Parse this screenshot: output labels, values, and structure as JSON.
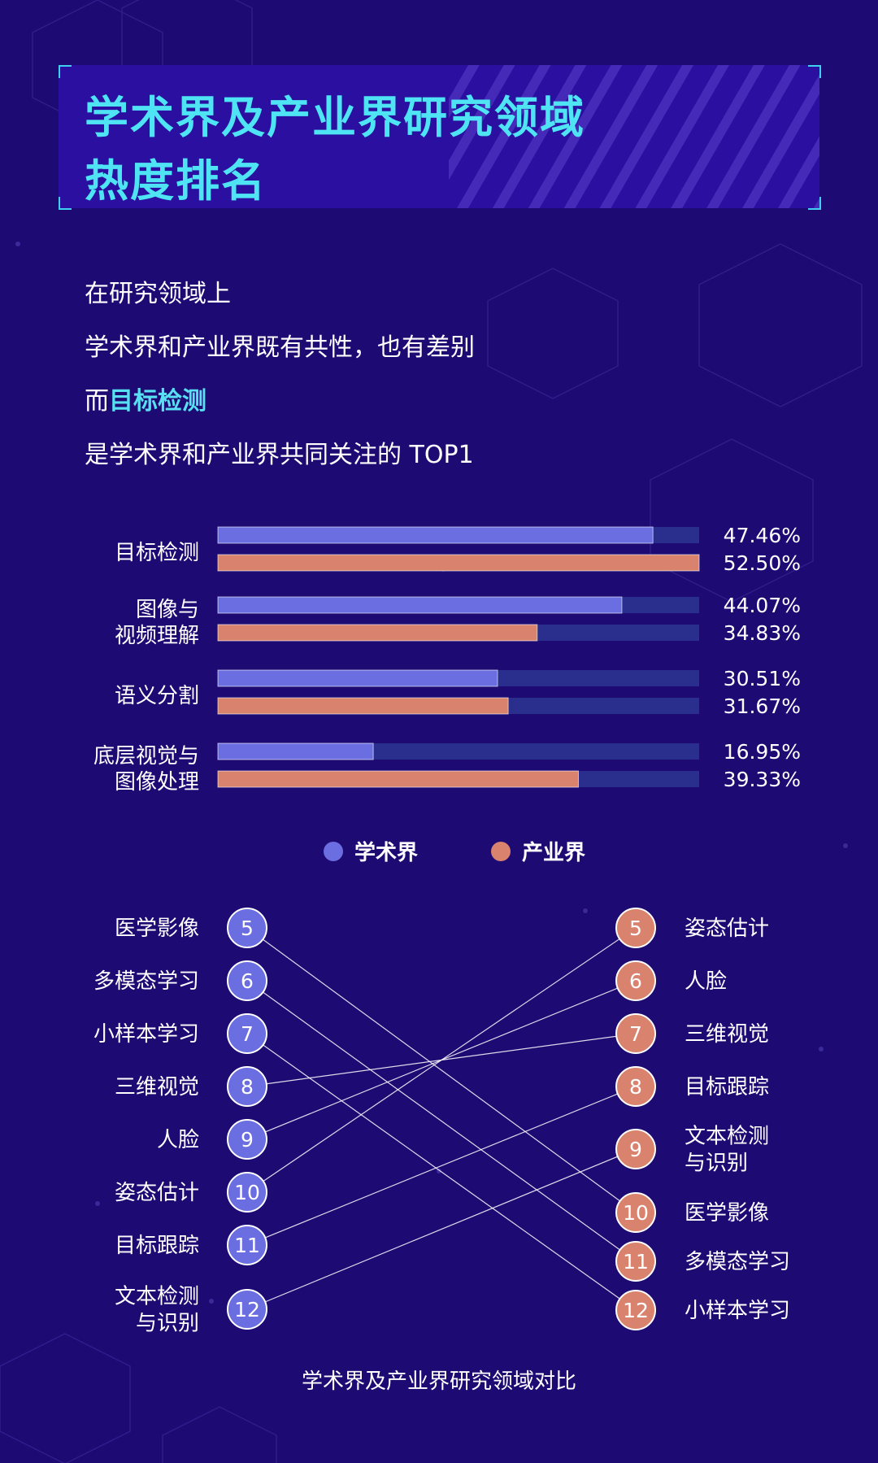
{
  "title": {
    "line1": "学术界及产业界研究领域",
    "line2": "热度排名"
  },
  "intro": {
    "line1": "在研究领域上",
    "line2": "学术界和产业界既有共性，也有差别",
    "line3_prefix": "而",
    "line3_highlight": "目标检测",
    "line4": "是学术界和产业界共同关注的 TOP1"
  },
  "colors": {
    "academic": "#6b6ee0",
    "industry": "#d9826e",
    "track": "#2a2e8c",
    "highlight": "#58dff2"
  },
  "chart_data": [
    {
      "type": "bar",
      "orientation": "horizontal",
      "categories": [
        [
          "目标检测"
        ],
        [
          "图像与",
          "视频理解"
        ],
        [
          "语义分割"
        ],
        [
          "底层视觉与",
          "图像处理"
        ]
      ],
      "series": [
        {
          "name": "学术界",
          "values": [
            47.46,
            44.07,
            30.51,
            16.95
          ],
          "labels": [
            "47.46%",
            "44.07%",
            "30.51%",
            "16.95%"
          ]
        },
        {
          "name": "产业界",
          "values": [
            52.5,
            34.83,
            31.67,
            39.33
          ],
          "labels": [
            "52.50%",
            "34.83%",
            "31.67%",
            "39.33%"
          ]
        }
      ],
      "xlim": [
        0,
        52.5
      ],
      "legend": "bottom-center"
    },
    {
      "type": "slope",
      "left_series": "学术界",
      "right_series": "产业界",
      "left": [
        {
          "rank": 5,
          "label": [
            "医学影像"
          ]
        },
        {
          "rank": 6,
          "label": [
            "多模态学习"
          ]
        },
        {
          "rank": 7,
          "label": [
            "小样本学习"
          ]
        },
        {
          "rank": 8,
          "label": [
            "三维视觉"
          ]
        },
        {
          "rank": 9,
          "label": [
            "人脸"
          ]
        },
        {
          "rank": 10,
          "label": [
            "姿态估计"
          ]
        },
        {
          "rank": 11,
          "label": [
            "目标跟踪"
          ]
        },
        {
          "rank": 12,
          "label": [
            "文本检测",
            "与识别"
          ]
        }
      ],
      "right": [
        {
          "rank": 5,
          "label": [
            "姿态估计"
          ]
        },
        {
          "rank": 6,
          "label": [
            "人脸"
          ]
        },
        {
          "rank": 7,
          "label": [
            "三维视觉"
          ]
        },
        {
          "rank": 8,
          "label": [
            "目标跟踪"
          ]
        },
        {
          "rank": 9,
          "label": [
            "文本检测",
            "与识别"
          ]
        },
        {
          "rank": 10,
          "label": [
            "医学影像"
          ]
        },
        {
          "rank": 11,
          "label": [
            "多模态学习"
          ]
        },
        {
          "rank": 12,
          "label": [
            "小样本学习"
          ]
        }
      ],
      "links": [
        [
          5,
          10
        ],
        [
          6,
          11
        ],
        [
          7,
          12
        ],
        [
          8,
          7
        ],
        [
          9,
          6
        ],
        [
          10,
          5
        ],
        [
          11,
          8
        ],
        [
          12,
          9
        ]
      ]
    }
  ],
  "caption": "学术界及产业界研究领域对比"
}
